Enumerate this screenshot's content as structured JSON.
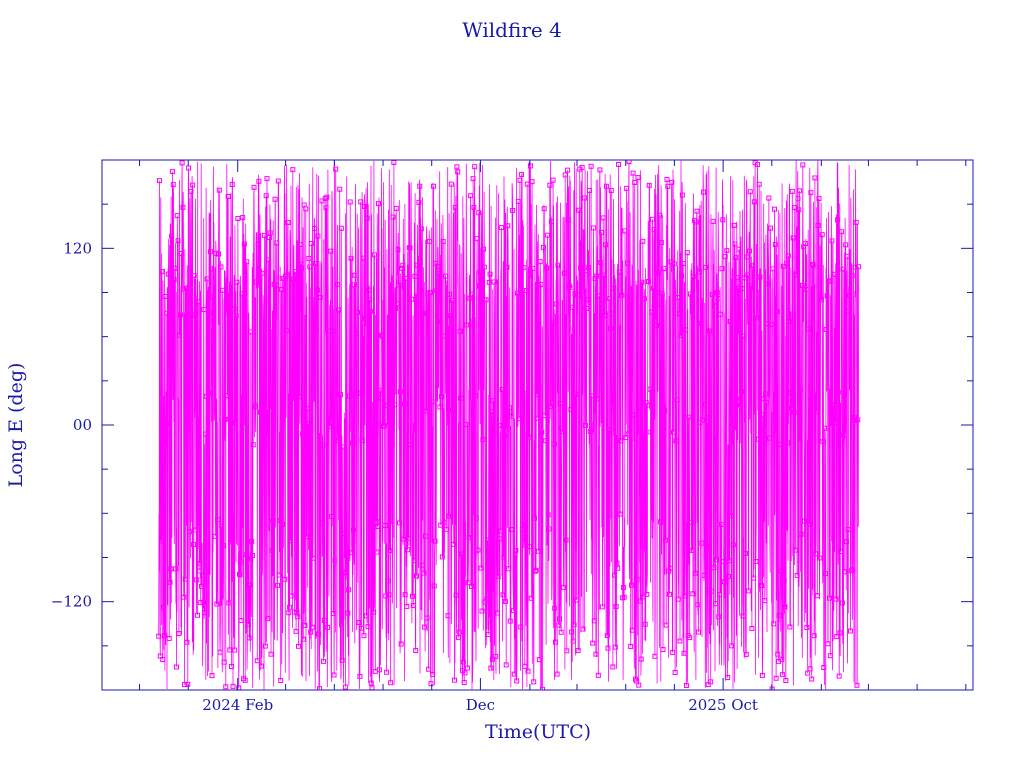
{
  "chart_data": {
    "type": "line",
    "title": "Wildfire 4",
    "xlabel": "Time(UTC)",
    "ylabel": "Long E (deg)",
    "ylim": [
      -180,
      180
    ],
    "xlim": [
      "2023-08-15",
      "2026-08-10"
    ],
    "x_ticks": [
      {
        "date": "2024-02-01",
        "label": "2024 Feb"
      },
      {
        "date": "2024-12-01",
        "label": "Dec"
      },
      {
        "date": "2025-10-01",
        "label": "2025 Oct"
      }
    ],
    "y_ticks": [
      {
        "value": 120,
        "label": "120"
      },
      {
        "value": 0,
        "label": "00"
      },
      {
        "value": -120,
        "label": "−120"
      }
    ],
    "data_range": [
      "2023-10-25",
      "2026-03-20"
    ],
    "series": [
      {
        "marker": "square",
        "color": "#ff00ff",
        "note_clusters": [
          95,
          5,
          -100
        ]
      }
    ],
    "grid": false,
    "legend": "none",
    "colors": {
      "axis": "#1a1aa8",
      "series": "#ff00ff"
    }
  }
}
